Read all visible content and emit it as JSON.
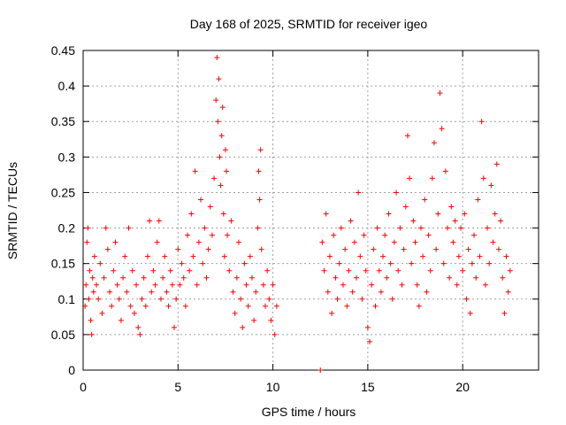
{
  "chart_data": {
    "type": "scatter",
    "title": "Day 168 of 2025, SRMTID for receiver igeo",
    "xlabel": "GPS time / hours",
    "ylabel": "SRMTID / TECUs",
    "xlim": [
      0,
      24
    ],
    "ylim": [
      0,
      0.45
    ],
    "grid": true,
    "x_ticks": [
      0,
      5,
      10,
      15,
      20
    ],
    "x_tick_labels": [
      "0",
      "5",
      "10",
      "15",
      "20"
    ],
    "y_ticks": [
      0,
      0.05,
      0.1,
      0.15,
      0.2,
      0.25,
      0.3,
      0.35,
      0.4,
      0.45
    ],
    "y_tick_labels": [
      "0",
      "0.05",
      "0.1",
      "0.15",
      "0.2",
      "0.25",
      "0.3",
      "0.35",
      "0.4",
      "0.45"
    ],
    "marker": "+",
    "color": "#ff0000",
    "series": [
      {
        "name": "SRMTID",
        "points": [
          [
            0.1,
            0.09
          ],
          [
            0.15,
            0.12
          ],
          [
            0.2,
            0.18
          ],
          [
            0.25,
            0.2
          ],
          [
            0.3,
            0.1
          ],
          [
            0.35,
            0.14
          ],
          [
            0.4,
            0.07
          ],
          [
            0.45,
            0.05
          ],
          [
            0.5,
            0.13
          ],
          [
            0.55,
            0.11
          ],
          [
            0.6,
            0.16
          ],
          [
            0.7,
            0.12
          ],
          [
            0.8,
            0.1
          ],
          [
            0.9,
            0.15
          ],
          [
            1.0,
            0.08
          ],
          [
            1.1,
            0.13
          ],
          [
            1.2,
            0.2
          ],
          [
            1.3,
            0.17
          ],
          [
            1.4,
            0.11
          ],
          [
            1.5,
            0.09
          ],
          [
            1.6,
            0.14
          ],
          [
            1.7,
            0.18
          ],
          [
            1.8,
            0.12
          ],
          [
            1.9,
            0.1
          ],
          [
            2.0,
            0.07
          ],
          [
            2.1,
            0.13
          ],
          [
            2.2,
            0.16
          ],
          [
            2.3,
            0.11
          ],
          [
            2.4,
            0.2
          ],
          [
            2.5,
            0.09
          ],
          [
            2.6,
            0.14
          ],
          [
            2.7,
            0.08
          ],
          [
            2.8,
            0.12
          ],
          [
            2.9,
            0.06
          ],
          [
            3.0,
            0.05
          ],
          [
            3.1,
            0.1
          ],
          [
            3.2,
            0.13
          ],
          [
            3.3,
            0.09
          ],
          [
            3.4,
            0.16
          ],
          [
            3.5,
            0.21
          ],
          [
            3.6,
            0.11
          ],
          [
            3.7,
            0.14
          ],
          [
            3.8,
            0.12
          ],
          [
            3.9,
            0.18
          ],
          [
            4.0,
            0.21
          ],
          [
            4.1,
            0.1
          ],
          [
            4.2,
            0.13
          ],
          [
            4.3,
            0.16
          ],
          [
            4.4,
            0.11
          ],
          [
            4.5,
            0.09
          ],
          [
            4.6,
            0.14
          ],
          [
            4.7,
            0.12
          ],
          [
            4.8,
            0.06
          ],
          [
            4.9,
            0.1
          ],
          [
            5.0,
            0.17
          ],
          [
            5.1,
            0.12
          ],
          [
            5.2,
            0.15
          ],
          [
            5.3,
            0.13
          ],
          [
            5.4,
            0.09
          ],
          [
            5.5,
            0.19
          ],
          [
            5.6,
            0.14
          ],
          [
            5.7,
            0.22
          ],
          [
            5.8,
            0.16
          ],
          [
            5.9,
            0.28
          ],
          [
            6.0,
            0.12
          ],
          [
            6.1,
            0.18
          ],
          [
            6.2,
            0.24
          ],
          [
            6.3,
            0.15
          ],
          [
            6.4,
            0.2
          ],
          [
            6.5,
            0.13
          ],
          [
            6.6,
            0.17
          ],
          [
            6.7,
            0.23
          ],
          [
            6.8,
            0.19
          ],
          [
            6.9,
            0.27
          ],
          [
            7.0,
            0.38
          ],
          [
            7.05,
            0.44
          ],
          [
            7.1,
            0.35
          ],
          [
            7.15,
            0.41
          ],
          [
            7.2,
            0.3
          ],
          [
            7.25,
            0.26
          ],
          [
            7.3,
            0.33
          ],
          [
            7.35,
            0.37
          ],
          [
            7.4,
            0.22
          ],
          [
            7.45,
            0.16
          ],
          [
            7.5,
            0.31
          ],
          [
            7.55,
            0.28
          ],
          [
            7.6,
            0.19
          ],
          [
            7.7,
            0.14
          ],
          [
            7.8,
            0.21
          ],
          [
            7.9,
            0.11
          ],
          [
            8.0,
            0.08
          ],
          [
            8.1,
            0.13
          ],
          [
            8.2,
            0.18
          ],
          [
            8.3,
            0.1
          ],
          [
            8.4,
            0.06
          ],
          [
            8.5,
            0.15
          ],
          [
            8.6,
            0.12
          ],
          [
            8.7,
            0.09
          ],
          [
            8.8,
            0.16
          ],
          [
            8.9,
            0.13
          ],
          [
            9.0,
            0.07
          ],
          [
            9.1,
            0.11
          ],
          [
            9.2,
            0.2
          ],
          [
            9.25,
            0.28
          ],
          [
            9.3,
            0.24
          ],
          [
            9.35,
            0.31
          ],
          [
            9.4,
            0.17
          ],
          [
            9.5,
            0.12
          ],
          [
            9.6,
            0.09
          ],
          [
            9.7,
            0.14
          ],
          [
            9.8,
            0.1
          ],
          [
            9.9,
            0.07
          ],
          [
            10.0,
            0.12
          ],
          [
            10.1,
            0.05
          ],
          [
            10.2,
            0.09
          ],
          [
            12.5,
            0.0
          ],
          [
            12.6,
            0.18
          ],
          [
            12.7,
            0.14
          ],
          [
            12.8,
            0.22
          ],
          [
            12.9,
            0.11
          ],
          [
            13.0,
            0.16
          ],
          [
            13.1,
            0.08
          ],
          [
            13.2,
            0.19
          ],
          [
            13.3,
            0.13
          ],
          [
            13.4,
            0.1
          ],
          [
            13.5,
            0.15
          ],
          [
            13.6,
            0.2
          ],
          [
            13.7,
            0.12
          ],
          [
            13.8,
            0.17
          ],
          [
            13.9,
            0.09
          ],
          [
            14.0,
            0.14
          ],
          [
            14.1,
            0.21
          ],
          [
            14.2,
            0.11
          ],
          [
            14.3,
            0.18
          ],
          [
            14.4,
            0.13
          ],
          [
            14.5,
            0.25
          ],
          [
            14.6,
            0.16
          ],
          [
            14.7,
            0.1
          ],
          [
            14.8,
            0.19
          ],
          [
            14.9,
            0.14
          ],
          [
            15.0,
            0.06
          ],
          [
            15.1,
            0.04
          ],
          [
            15.2,
            0.12
          ],
          [
            15.3,
            0.17
          ],
          [
            15.4,
            0.09
          ],
          [
            15.5,
            0.2
          ],
          [
            15.6,
            0.14
          ],
          [
            15.7,
            0.11
          ],
          [
            15.8,
            0.16
          ],
          [
            15.9,
            0.19
          ],
          [
            16.0,
            0.13
          ],
          [
            16.1,
            0.22
          ],
          [
            16.2,
            0.15
          ],
          [
            16.3,
            0.1
          ],
          [
            16.4,
            0.18
          ],
          [
            16.5,
            0.25
          ],
          [
            16.6,
            0.14
          ],
          [
            16.7,
            0.2
          ],
          [
            16.8,
            0.12
          ],
          [
            16.9,
            0.17
          ],
          [
            17.0,
            0.23
          ],
          [
            17.1,
            0.33
          ],
          [
            17.2,
            0.27
          ],
          [
            17.3,
            0.15
          ],
          [
            17.4,
            0.21
          ],
          [
            17.5,
            0.18
          ],
          [
            17.6,
            0.12
          ],
          [
            17.7,
            0.09
          ],
          [
            17.8,
            0.2
          ],
          [
            17.9,
            0.16
          ],
          [
            18.0,
            0.24
          ],
          [
            18.1,
            0.11
          ],
          [
            18.2,
            0.19
          ],
          [
            18.3,
            0.14
          ],
          [
            18.4,
            0.27
          ],
          [
            18.5,
            0.32
          ],
          [
            18.6,
            0.17
          ],
          [
            18.7,
            0.22
          ],
          [
            18.8,
            0.39
          ],
          [
            18.9,
            0.34
          ],
          [
            19.0,
            0.15
          ],
          [
            19.1,
            0.28
          ],
          [
            19.2,
            0.2
          ],
          [
            19.3,
            0.13
          ],
          [
            19.4,
            0.23
          ],
          [
            19.5,
            0.18
          ],
          [
            19.6,
            0.21
          ],
          [
            19.7,
            0.12
          ],
          [
            19.8,
            0.16
          ],
          [
            19.9,
            0.2
          ],
          [
            20.0,
            0.14
          ],
          [
            20.1,
            0.22
          ],
          [
            20.2,
            0.1
          ],
          [
            20.3,
            0.17
          ],
          [
            20.4,
            0.08
          ],
          [
            20.5,
            0.15
          ],
          [
            20.6,
            0.19
          ],
          [
            20.7,
            0.13
          ],
          [
            20.8,
            0.24
          ],
          [
            20.9,
            0.16
          ],
          [
            21.0,
            0.35
          ],
          [
            21.1,
            0.27
          ],
          [
            21.2,
            0.12
          ],
          [
            21.3,
            0.2
          ],
          [
            21.4,
            0.15
          ],
          [
            21.5,
            0.26
          ],
          [
            21.6,
            0.18
          ],
          [
            21.7,
            0.22
          ],
          [
            21.8,
            0.29
          ],
          [
            21.9,
            0.17
          ],
          [
            22.0,
            0.21
          ],
          [
            22.1,
            0.13
          ],
          [
            22.2,
            0.08
          ],
          [
            22.3,
            0.16
          ],
          [
            22.4,
            0.11
          ],
          [
            22.5,
            0.14
          ]
        ]
      }
    ]
  }
}
